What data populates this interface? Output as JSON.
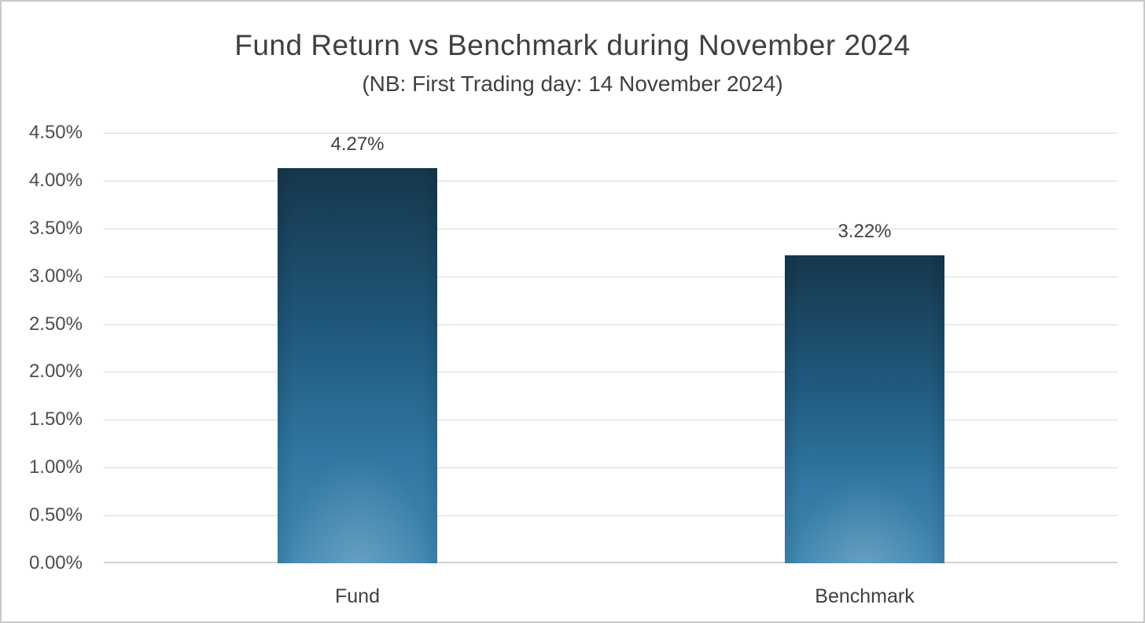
{
  "chart_data": {
    "type": "bar",
    "title": "Fund Return vs Benchmark during November 2024",
    "subtitle": "(NB: First Trading day: 14 November 2024)",
    "categories": [
      "Fund",
      "Benchmark"
    ],
    "values": [
      4.27,
      3.22
    ],
    "data_labels": [
      "4.27%",
      "3.22%"
    ],
    "xlabel": "",
    "ylabel": "",
    "ylim": [
      0,
      4.5
    ],
    "ytick_values": [
      0,
      0.5,
      1,
      1.5,
      2,
      2.5,
      3,
      3.5,
      4,
      4.5
    ],
    "ytick_labels": [
      "0.00%",
      "0.50%",
      "1.00%",
      "1.50%",
      "2.00%",
      "2.50%",
      "3.00%",
      "3.50%",
      "4.00%",
      "4.50%"
    ],
    "grid": true,
    "legend": "none",
    "colors": {
      "bar_gradient": [
        "#15374c",
        "#20597d",
        "#2f76a0",
        "#4289b2"
      ],
      "gridline": "#d9d9d9",
      "axis_line": "#d2d2d2",
      "title_text": "#404040",
      "axis_text": "#4d4d4d",
      "background": "#ffffff",
      "border": "#c9c9c9"
    }
  }
}
